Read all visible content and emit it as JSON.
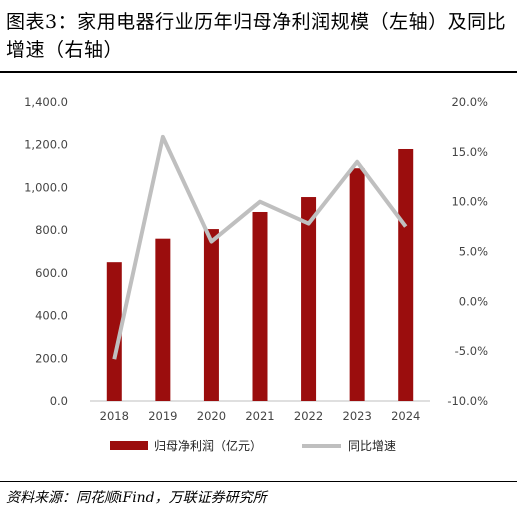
{
  "header": {
    "title": "图表3：家用电器行业历年归母净利润规模（左轴）及同比增速（右轴）"
  },
  "footer": {
    "source": "资料来源：同花顺iFind，万联证券研究所"
  },
  "chart_data": {
    "type": "bar",
    "categories": [
      "2018",
      "2019",
      "2020",
      "2021",
      "2022",
      "2023",
      "2024"
    ],
    "series": [
      {
        "name": "归母净利润（亿元）",
        "type": "bar",
        "axis": "left",
        "color": "#9b0d0d",
        "values": [
          650,
          760,
          805,
          885,
          955,
          1090,
          1180
        ]
      },
      {
        "name": "同比增速",
        "type": "line",
        "axis": "right",
        "color": "#bfbfbf",
        "values": [
          -5.8,
          16.5,
          6.0,
          10.0,
          7.8,
          14.0,
          7.5
        ]
      }
    ],
    "y_left": {
      "min": 0,
      "max": 1400,
      "ticks": [
        "0.0",
        "200.0",
        "400.0",
        "600.0",
        "800.0",
        "1,000.0",
        "1,200.0",
        "1,400.0"
      ]
    },
    "y_right": {
      "min": -10,
      "max": 20,
      "ticks": [
        "-10.0%",
        "-5.0%",
        "0.0%",
        "5.0%",
        "10.0%",
        "15.0%",
        "20.0%"
      ]
    },
    "grid": false,
    "legend": "bottom"
  }
}
